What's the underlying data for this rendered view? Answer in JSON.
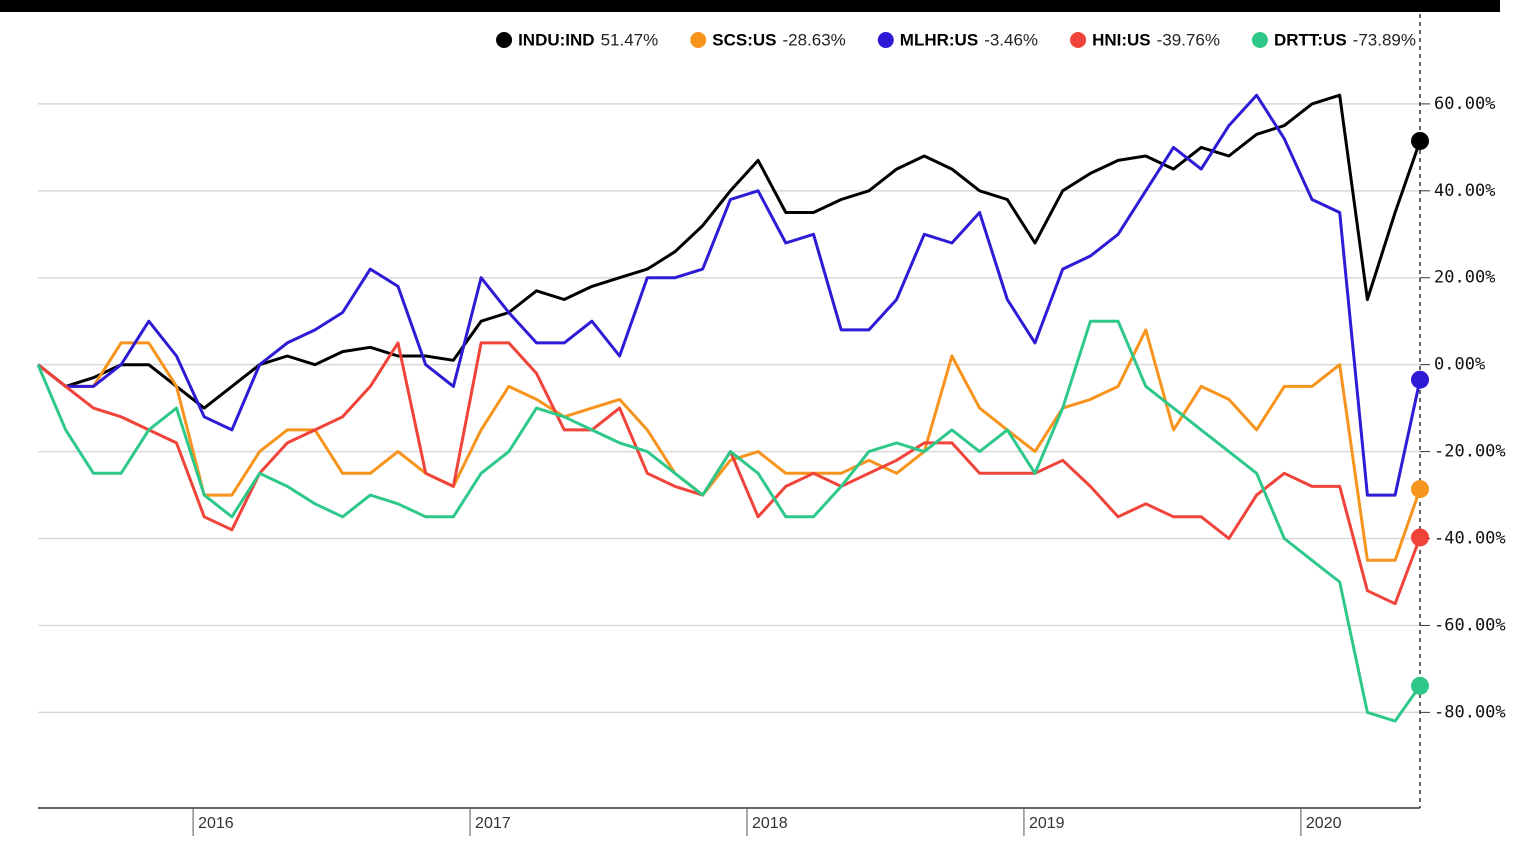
{
  "chart_data": {
    "type": "line",
    "x": [
      2015.44,
      2015.54,
      2015.64,
      2015.74,
      2015.84,
      2015.94,
      2016.04,
      2016.14,
      2016.24,
      2016.34,
      2016.44,
      2016.54,
      2016.64,
      2016.74,
      2016.84,
      2016.94,
      2017.04,
      2017.14,
      2017.24,
      2017.34,
      2017.44,
      2017.54,
      2017.64,
      2017.74,
      2017.84,
      2017.94,
      2018.04,
      2018.14,
      2018.24,
      2018.34,
      2018.44,
      2018.54,
      2018.64,
      2018.74,
      2018.84,
      2018.94,
      2019.04,
      2019.14,
      2019.24,
      2019.34,
      2019.44,
      2019.54,
      2019.64,
      2019.74,
      2019.84,
      2019.94,
      2020.04,
      2020.14,
      2020.24,
      2020.34,
      2020.43
    ],
    "xlim": [
      2015.44,
      2020.43
    ],
    "xticks": [
      2016,
      2017,
      2018,
      2019,
      2020
    ],
    "ylim": [
      -102,
      77
    ],
    "yticks": [
      {
        "value": 60,
        "label": "60.00%"
      },
      {
        "value": 40,
        "label": "40.00%"
      },
      {
        "value": 20,
        "label": "20.00%"
      },
      {
        "value": 0,
        "label": "0.00%"
      },
      {
        "value": -20,
        "label": "-20.00%"
      },
      {
        "value": -40,
        "label": "-40.00%"
      },
      {
        "value": -60,
        "label": "-60.00%"
      },
      {
        "value": -80,
        "label": "-80.00%"
      }
    ],
    "grid": true,
    "series": [
      {
        "name": "INDU:IND",
        "change_label": "51.47%",
        "color": "#000000",
        "values": [
          0,
          -5,
          -3,
          0,
          0,
          -5,
          -10,
          -5,
          0,
          2,
          0,
          3,
          4,
          2,
          2,
          1,
          10,
          12,
          17,
          15,
          18,
          20,
          22,
          26,
          32,
          40,
          47,
          35,
          35,
          38,
          40,
          45,
          48,
          45,
          40,
          38,
          28,
          40,
          44,
          47,
          48,
          45,
          50,
          48,
          53,
          55,
          60,
          62,
          15,
          35,
          51.47
        ]
      },
      {
        "name": "SCS:US",
        "change_label": "-28.63%",
        "color": "#f7941d",
        "values": [
          0,
          -5,
          -5,
          5,
          5,
          -5,
          -30,
          -30,
          -20,
          -15,
          -15,
          -25,
          -25,
          -20,
          -25,
          -28,
          -15,
          -5,
          -8,
          -12,
          -10,
          -8,
          -15,
          -25,
          -30,
          -22,
          -20,
          -25,
          -25,
          -25,
          -22,
          -25,
          -20,
          2,
          -10,
          -15,
          -20,
          -10,
          -8,
          -5,
          8,
          -15,
          -5,
          -8,
          -15,
          -5,
          -5,
          0,
          -45,
          -45,
          -28.63
        ]
      },
      {
        "name": "MLHR:US",
        "change_label": "-3.46%",
        "color": "#2d1bd6",
        "values": [
          0,
          -5,
          -5,
          0,
          10,
          2,
          -12,
          -15,
          0,
          5,
          8,
          12,
          22,
          18,
          0,
          -5,
          20,
          12,
          5,
          5,
          10,
          2,
          20,
          20,
          22,
          38,
          40,
          28,
          30,
          8,
          8,
          15,
          30,
          28,
          35,
          15,
          5,
          22,
          25,
          30,
          40,
          50,
          45,
          55,
          62,
          52,
          38,
          35,
          -30,
          -30,
          -3.46
        ]
      },
      {
        "name": "HNI:US",
        "change_label": "-39.76%",
        "color": "#f0433a",
        "values": [
          0,
          -5,
          -10,
          -12,
          -15,
          -18,
          -35,
          -38,
          -25,
          -18,
          -15,
          -12,
          -5,
          5,
          -25,
          -28,
          5,
          5,
          -2,
          -15,
          -15,
          -10,
          -25,
          -28,
          -30,
          -20,
          -35,
          -28,
          -25,
          -28,
          -25,
          -22,
          -18,
          -18,
          -25,
          -25,
          -25,
          -22,
          -28,
          -35,
          -32,
          -35,
          -35,
          -40,
          -30,
          -25,
          -28,
          -28,
          -52,
          -55,
          -39.76
        ]
      },
      {
        "name": "DRTT:US",
        "change_label": "-73.89%",
        "color": "#2ec88a",
        "values": [
          0,
          -15,
          -25,
          -25,
          -15,
          -10,
          -30,
          -35,
          -25,
          -28,
          -32,
          -35,
          -30,
          -32,
          -35,
          -35,
          -25,
          -20,
          -10,
          -12,
          -15,
          -18,
          -20,
          -25,
          -30,
          -20,
          -25,
          -35,
          -35,
          -28,
          -20,
          -18,
          -20,
          -15,
          -20,
          -15,
          -25,
          -10,
          10,
          10,
          -5,
          -10,
          -15,
          -20,
          -25,
          -40,
          -45,
          -50,
          -80,
          -82,
          -73.89
        ]
      }
    ]
  }
}
